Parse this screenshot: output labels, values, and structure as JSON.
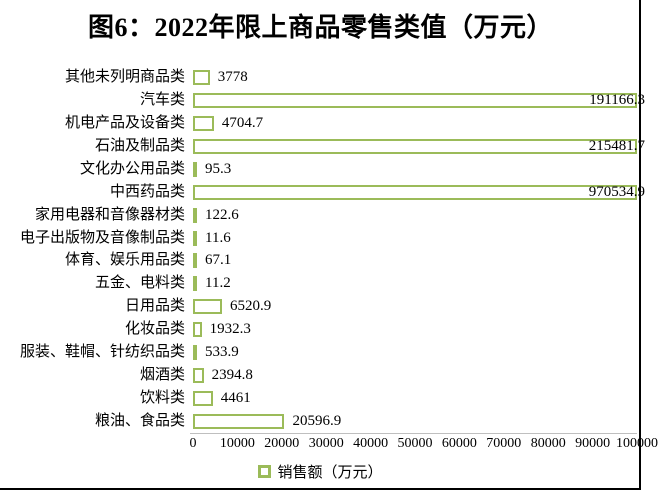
{
  "chart_data": {
    "type": "bar",
    "orientation": "horizontal",
    "title": "图6：2022年限上商品零售类值（万元）",
    "categories": [
      "其他未列明商品类",
      "汽车类",
      "机电产品及设备类",
      "石油及制品类",
      "文化办公用品类",
      "中西药品类",
      "家用电器和音像器材类",
      "电子出版物及音像制品类",
      "体育、娱乐用品类",
      "五金、电料类",
      "日用品类",
      "化妆品类",
      "服装、鞋帽、针纺织品类",
      "烟酒类",
      "饮料类",
      "粮油、食品类"
    ],
    "values": [
      3778,
      191166.3,
      4704.7,
      215481.7,
      95.3,
      970534.9,
      122.6,
      11.6,
      67.1,
      11.2,
      6520.9,
      1932.3,
      533.9,
      2394.8,
      4461,
      20596.9
    ],
    "value_labels": [
      "3778",
      "191166.3",
      "4704.7",
      "215481.7",
      "95.3",
      "970534.9",
      "122.6",
      "11.6",
      "67.1",
      "11.2",
      "6520.9",
      "1932.3",
      "533.9",
      "2394.8",
      "4461",
      "20596.9"
    ],
    "xlabel": "",
    "ylabel": "",
    "xlim": [
      0,
      100000
    ],
    "x_tick_labels": [
      "0",
      "10000",
      "20000",
      "30000",
      "40000",
      "50000",
      "60000",
      "70000",
      "80000",
      "90000",
      "100000"
    ],
    "legend": [
      {
        "label": "销售额（万元）",
        "swatch_icon": "hollow-green-square-icon"
      }
    ],
    "legend_position": "bottom",
    "grid": false,
    "bars_exceeding_axis_are_clipped": true,
    "colors": {
      "bar_border": "#9BBB59",
      "bar_fill": "#FFFFFF",
      "axis_line": "#BFBFBF",
      "frame_border": "#000000",
      "text": "#000000",
      "background": "#FFFFFF"
    }
  }
}
